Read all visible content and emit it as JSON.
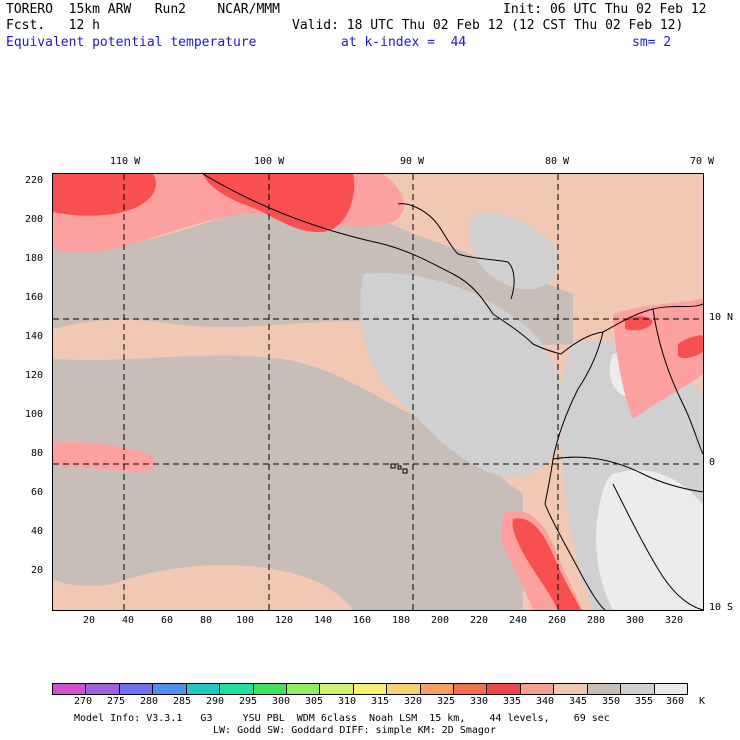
{
  "header": {
    "line1_left": "TORERO  15km ARW   Run2    NCAR/MMM",
    "line1_right": "Init: 06 UTC Thu 02 Feb 12",
    "line2_left": "Fcst.   12 h",
    "line2_right": "Valid: 18 UTC Thu 02 Feb 12 (12 CST Thu 02 Feb 12)",
    "line3_left": "Equivalent potential temperature",
    "line3_mid": "at k-index =  44",
    "line3_right": "sm= 2"
  },
  "map": {
    "lon_labels": [
      "110 W",
      "100 W",
      "90 W",
      "80 W",
      "70 W"
    ],
    "lat_labels": [
      "10 N",
      "0",
      "10 S"
    ],
    "y_ticks": [
      "220",
      "200",
      "180",
      "160",
      "140",
      "120",
      "100",
      "80",
      "60",
      "40",
      "20"
    ],
    "x_ticks": [
      "20",
      "40",
      "60",
      "80",
      "100",
      "120",
      "140",
      "160",
      "180",
      "200",
      "220",
      "240",
      "260",
      "280",
      "300",
      "320"
    ],
    "colors": {
      "c_335": "#f85050",
      "c_340": "#fca0a0",
      "c_345": "#f0c8b4",
      "c_350": "#c8beb8",
      "c_355": "#d0d0d0",
      "c_360": "#ececec"
    }
  },
  "colorbar": {
    "labels": [
      "270",
      "275",
      "280",
      "285",
      "290",
      "295",
      "300",
      "305",
      "310",
      "315",
      "320",
      "325",
      "330",
      "335",
      "340",
      "345",
      "350",
      "355",
      "360",
      "K"
    ],
    "colors": [
      "#d050d0",
      "#a060e0",
      "#7070f0",
      "#5090f0",
      "#20c8c8",
      "#20e0a0",
      "#40e060",
      "#90f060",
      "#d0f070",
      "#f8f070",
      "#f8d070",
      "#f8a060",
      "#f07050",
      "#f04848",
      "#f8a090",
      "#f0c8b4",
      "#c8beb8",
      "#d0d0d0",
      "#ececec"
    ]
  },
  "footer": {
    "line1": "Model Info: V3.3.1   G3     YSU PBL  WDM 6class  Noah LSM  15 km,    44 levels,    69 sec",
    "line2": "LW: Godd SW: Goddard DIFF: simple KM: 2D Smagor"
  }
}
